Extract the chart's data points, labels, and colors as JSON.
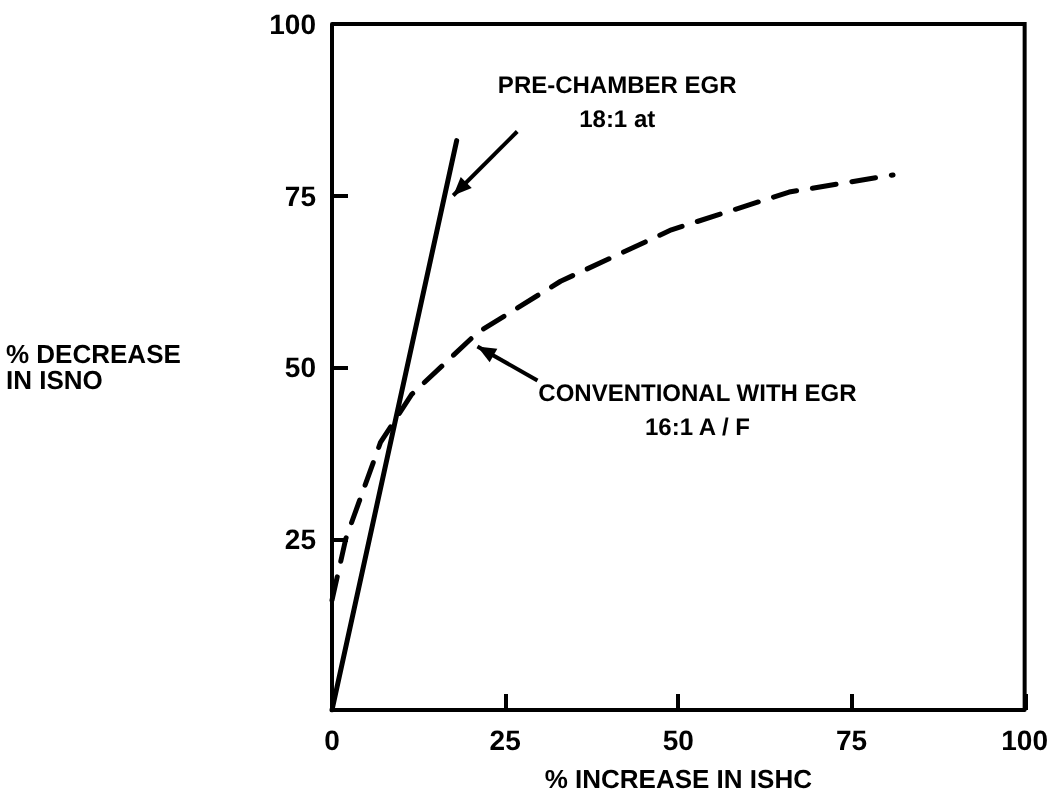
{
  "chart_data": {
    "type": "line",
    "xlabel": "% INCREASE IN ISHC",
    "ylabel": "% DECREASE\nIN ISNO",
    "xlim": [
      0,
      100
    ],
    "xticks": [
      0,
      25,
      50,
      75,
      100
    ],
    "ylim": [
      0,
      100
    ],
    "yticks": [
      25,
      50,
      75,
      100
    ],
    "grid": false,
    "marker": "none",
    "series": [
      {
        "color": "#000000",
        "line_style": "solid",
        "x": [
          0,
          18
        ],
        "values": [
          0,
          83
        ]
      },
      {
        "color": "#000000",
        "line_style": "dashed",
        "x": [
          0,
          2,
          7,
          11.5,
          21,
          33,
          49,
          66,
          81
        ],
        "values": [
          16,
          25,
          39,
          46,
          55,
          62.5,
          70,
          75.5,
          78
        ]
      }
    ],
    "annotations": [
      {
        "text": "PRE-CHAMBER EGR\n18:1 at",
        "x": 17.5,
        "y": 75
      },
      {
        "text": "CONVENTIONAL WITH EGR\n16:1 A / F",
        "x": 21,
        "y": 53
      }
    ]
  }
}
